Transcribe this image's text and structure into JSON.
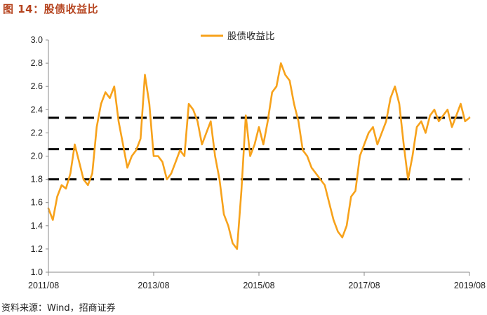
{
  "figure_title": "图 14：股债收益比",
  "source_note": "资料来源：Wind，招商证券",
  "colors": {
    "series": "#f7a21b",
    "ref_lines": "#000000",
    "title": "#b5431e"
  },
  "chart_data": {
    "type": "line",
    "title": "",
    "xlabel": "",
    "ylabel": "",
    "ylim": [
      1.0,
      3.0
    ],
    "yticks": [
      "1.0",
      "1.2",
      "1.4",
      "1.6",
      "1.8",
      "2.0",
      "2.2",
      "2.4",
      "2.6",
      "2.8",
      "3.0"
    ],
    "xlim": [
      "2011/08",
      "2019/08"
    ],
    "xticks": [
      "2011/08",
      "2013/08",
      "2015/08",
      "2017/08",
      "2019/08"
    ],
    "legend": "top-center",
    "series": [
      {
        "name": "股债收益比",
        "style": "solid",
        "x": [
          "2011/08",
          "2011/09",
          "2011/10",
          "2011/11",
          "2011/12",
          "2012/01",
          "2012/02",
          "2012/03",
          "2012/04",
          "2012/05",
          "2012/06",
          "2012/07",
          "2012/08",
          "2012/09",
          "2012/10",
          "2012/11",
          "2012/12",
          "2013/01",
          "2013/02",
          "2013/03",
          "2013/04",
          "2013/05",
          "2013/06",
          "2013/07",
          "2013/08",
          "2013/09",
          "2013/10",
          "2013/11",
          "2013/12",
          "2014/01",
          "2014/02",
          "2014/03",
          "2014/04",
          "2014/05",
          "2014/06",
          "2014/07",
          "2014/08",
          "2014/09",
          "2014/10",
          "2014/11",
          "2014/12",
          "2015/01",
          "2015/02",
          "2015/03",
          "2015/04",
          "2015/05",
          "2015/06",
          "2015/07",
          "2015/08",
          "2015/09",
          "2015/10",
          "2015/11",
          "2015/12",
          "2016/01",
          "2016/02",
          "2016/03",
          "2016/04",
          "2016/05",
          "2016/06",
          "2016/07",
          "2016/08",
          "2016/09",
          "2016/10",
          "2016/11",
          "2016/12",
          "2017/01",
          "2017/02",
          "2017/03",
          "2017/04",
          "2017/05",
          "2017/06",
          "2017/07",
          "2017/08",
          "2017/09",
          "2017/10",
          "2017/11",
          "2017/12",
          "2018/01",
          "2018/02",
          "2018/03",
          "2018/04",
          "2018/05",
          "2018/06",
          "2018/07",
          "2018/08",
          "2018/09",
          "2018/10",
          "2018/11",
          "2018/12",
          "2019/01",
          "2019/02",
          "2019/03",
          "2019/04",
          "2019/05",
          "2019/06",
          "2019/07",
          "2019/08"
        ],
        "values": [
          1.55,
          1.45,
          1.65,
          1.75,
          1.72,
          1.85,
          2.1,
          1.95,
          1.8,
          1.75,
          1.85,
          2.25,
          2.45,
          2.55,
          2.5,
          2.6,
          2.3,
          2.1,
          1.9,
          2.0,
          2.05,
          2.15,
          2.7,
          2.45,
          2.0,
          2.0,
          1.95,
          1.8,
          1.85,
          1.95,
          2.05,
          2.0,
          2.45,
          2.4,
          2.3,
          2.1,
          2.2,
          2.3,
          2.0,
          1.8,
          1.5,
          1.4,
          1.25,
          1.2,
          1.7,
          2.35,
          2.0,
          2.1,
          2.25,
          2.1,
          2.3,
          2.55,
          2.6,
          2.8,
          2.7,
          2.65,
          2.45,
          2.3,
          2.05,
          2.0,
          1.9,
          1.85,
          1.8,
          1.75,
          1.6,
          1.45,
          1.35,
          1.3,
          1.4,
          1.65,
          1.7,
          2.0,
          2.1,
          2.2,
          2.25,
          2.1,
          2.2,
          2.3,
          2.5,
          2.6,
          2.45,
          2.1,
          1.8,
          2.0,
          2.25,
          2.3,
          2.2,
          2.35,
          2.4,
          2.3,
          2.35,
          2.4,
          2.25,
          2.35,
          2.45,
          2.3,
          2.33
        ]
      },
      {
        "style": "dashed",
        "x": [
          "2011/08",
          "2019/08"
        ],
        "values": [
          2.33,
          2.33
        ]
      },
      {
        "style": "dashed",
        "x": [
          "2011/08",
          "2019/08"
        ],
        "values": [
          2.06,
          2.06
        ]
      },
      {
        "style": "dashed",
        "x": [
          "2011/08",
          "2019/08"
        ],
        "values": [
          1.8,
          1.8
        ]
      }
    ]
  }
}
